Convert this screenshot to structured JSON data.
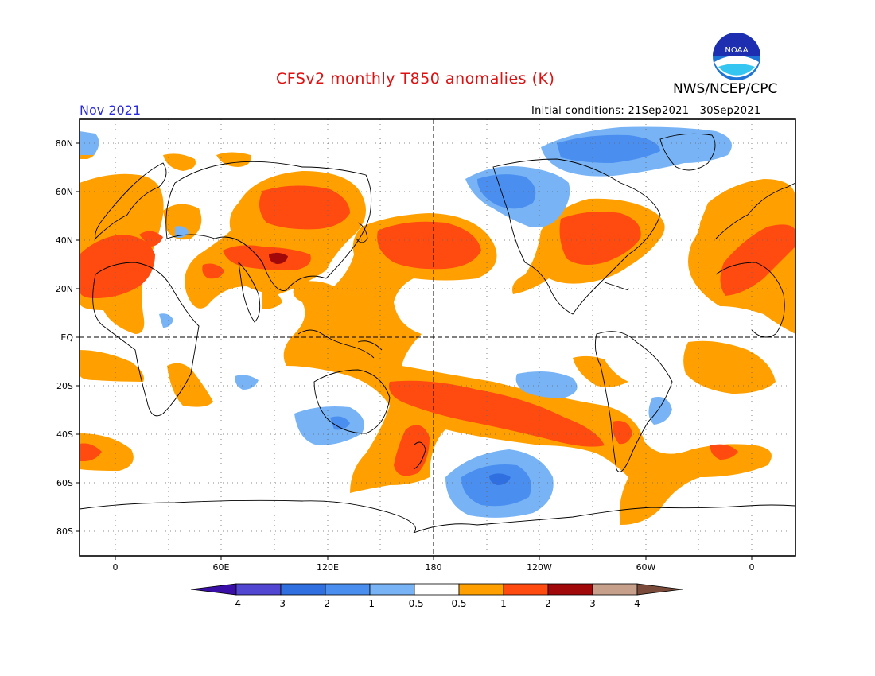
{
  "header": {
    "title": "CFSv2 monthly T850 anomalies (K)",
    "month": "Nov 2021",
    "agency": "NWS/NCEP/CPC",
    "initial_conditions": "Initial conditions: 21Sep2021—30Sep2021",
    "logo_text": "NOAA"
  },
  "colors": {
    "title": "#e01010",
    "month": "#2a2adf",
    "neg4": "#3a0fa8",
    "neg3": "#5046d2",
    "neg2": "#2f6fdf",
    "neg1": "#4a8ff0",
    "neg05": "#78b4f5",
    "neutral": "#ffffff",
    "pos05": "#ffa000",
    "pos1": "#ff4a10",
    "pos2": "#e02a12",
    "pos3": "#a0080a",
    "pos4": "#c7a08c",
    "pos5": "#7a4a3a"
  },
  "axes": {
    "lat_labels": [
      "80N",
      "60N",
      "40N",
      "20N",
      "EQ",
      "20S",
      "40S",
      "60S",
      "80S"
    ],
    "lon_labels": [
      "0",
      "60E",
      "120E",
      "180",
      "120W",
      "60W",
      "0"
    ]
  },
  "colorbar": {
    "labels": [
      "-4",
      "-3",
      "-2",
      "-1",
      "-0.5",
      "0.5",
      "1",
      "2",
      "3",
      "4"
    ]
  }
}
